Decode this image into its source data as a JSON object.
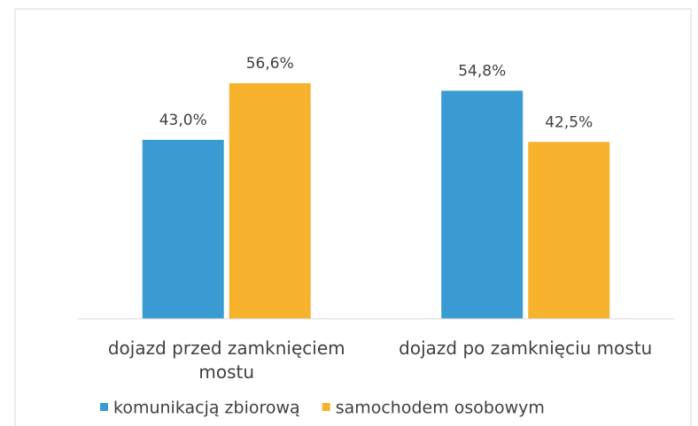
{
  "chart_data": {
    "type": "bar",
    "categories": [
      "dojazd przed zamknięciem mostu",
      "dojazd po zamknięciu mostu"
    ],
    "series": [
      {
        "name": "komunikacją zbiorową",
        "color": "#3a9bd2",
        "values": [
          43.0,
          54.8
        ],
        "value_labels": [
          "43,0%",
          "54,8%"
        ]
      },
      {
        "name": "samochodem osobowym",
        "color": "#f7b22d",
        "values": [
          56.6,
          42.5
        ],
        "value_labels": [
          "56,6%",
          "42,5%"
        ]
      }
    ],
    "ylim": [
      0,
      60
    ],
    "grid": false,
    "legend": "bottom"
  }
}
